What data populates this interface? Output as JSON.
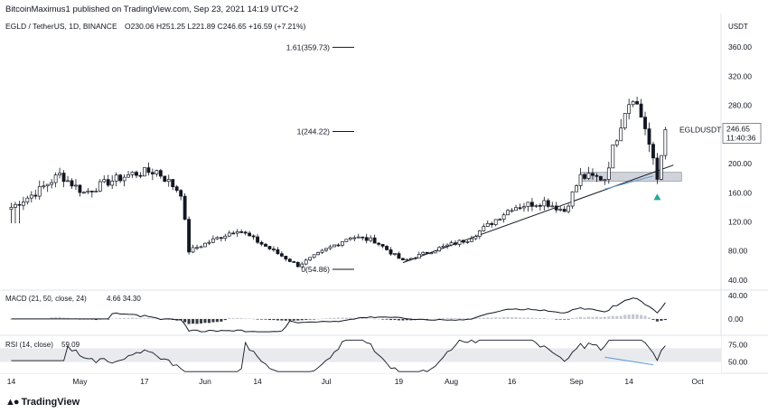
{
  "header": {
    "publish_line": "BitcoinMaximus1 published on TradingView.com, Sep 23, 2021 14:19 UTC+2",
    "symbol_line": "EGLD / TetherUS, 1D, BINANCE",
    "ohlc": "O230.06  H251.25  L221.89  C246.65  +16.59 (+7.21%)"
  },
  "footer": {
    "brand": "TradingView",
    "logo_icon": "tradingview-logo-icon"
  },
  "price_axis": {
    "currency_label": "USDT",
    "ticks": [
      "360.00",
      "320.00",
      "280.00",
      "240.00",
      "200.00",
      "160.00",
      "120.00",
      "80.00",
      "40.00"
    ],
    "last_price_label": "EGLDUSDT",
    "last_price": "246.65",
    "countdown": "11:40:36"
  },
  "macd_axis": [
    "40.00",
    "0.00"
  ],
  "rsi_axis": [
    "75.00",
    "50.00"
  ],
  "time_axis": [
    "14",
    "May",
    "17",
    "Jun",
    "14",
    "Jul",
    "19",
    "Aug",
    "16",
    "Sep",
    "14",
    "Oct"
  ],
  "colors": {
    "up": "#ffffff",
    "down": "#131722",
    "trendline": "#131722",
    "rsi_divergence": "#5b9bd5",
    "arrow": "#26a69a",
    "box": "#d0d3da"
  },
  "chart_data": [
    {
      "type": "candlestick",
      "title": "EGLD / TetherUS, 1D, BINANCE",
      "ylim": [
        30,
        400
      ],
      "fib_levels": [
        {
          "label": "1.61(359.73)",
          "value": 359.73
        },
        {
          "label": "1(244.22)",
          "value": 244.22
        },
        {
          "label": "0(54.86)",
          "value": 54.86
        }
      ],
      "support_zone": [
        176,
        188
      ],
      "trendline": [
        {
          "date": "Jul 20",
          "value": 64
        },
        {
          "date": "Sep 25",
          "value": 198
        }
      ],
      "close_path": [
        {
          "date": "Apr 14",
          "value": 140
        },
        {
          "date": "Apr 20",
          "value": 160
        },
        {
          "date": "Apr 26",
          "value": 185
        },
        {
          "date": "May 2",
          "value": 160
        },
        {
          "date": "May 8",
          "value": 175
        },
        {
          "date": "May 14",
          "value": 186
        },
        {
          "date": "May 20",
          "value": 190
        },
        {
          "date": "May 26",
          "value": 160
        },
        {
          "date": "May 28",
          "value": 80
        },
        {
          "date": "Jun 3",
          "value": 95
        },
        {
          "date": "Jun 9",
          "value": 110
        },
        {
          "date": "Jun 14",
          "value": 93
        },
        {
          "date": "Jun 21",
          "value": 70
        },
        {
          "date": "Jun 24",
          "value": 60
        },
        {
          "date": "Jul 1",
          "value": 82
        },
        {
          "date": "Jul 7",
          "value": 100
        },
        {
          "date": "Jul 13",
          "value": 94
        },
        {
          "date": "Jul 20",
          "value": 66
        },
        {
          "date": "Jul 28",
          "value": 82
        },
        {
          "date": "Aug 5",
          "value": 96
        },
        {
          "date": "Aug 10",
          "value": 115
        },
        {
          "date": "Aug 16",
          "value": 140
        },
        {
          "date": "Aug 24",
          "value": 148
        },
        {
          "date": "Aug 29",
          "value": 135
        },
        {
          "date": "Sep 2",
          "value": 182
        },
        {
          "date": "Sep 8",
          "value": 180
        },
        {
          "date": "Sep 10",
          "value": 220
        },
        {
          "date": "Sep 13",
          "value": 275
        },
        {
          "date": "Sep 15",
          "value": 295
        },
        {
          "date": "Sep 18",
          "value": 250
        },
        {
          "date": "Sep 21",
          "value": 178
        },
        {
          "date": "Sep 23",
          "value": 246.65
        }
      ],
      "annotations": [
        {
          "text": "0(54.86)"
        }
      ]
    },
    {
      "type": "bar",
      "title": "MACD (21, 50, close, 24)",
      "values_label": "4.66  34.30",
      "ylim": [
        -25,
        45
      ]
    },
    {
      "type": "line",
      "title": "RSI (14, close)",
      "value_label": "59.09",
      "ylim": [
        35,
        85
      ]
    }
  ]
}
